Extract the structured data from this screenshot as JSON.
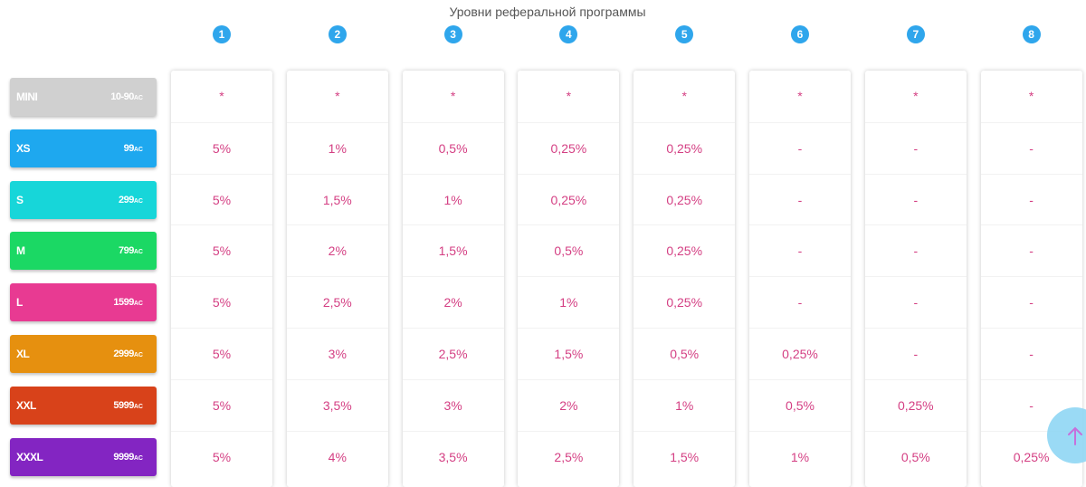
{
  "title": "Уровни реферальной программы",
  "levels": [
    "1",
    "2",
    "3",
    "4",
    "5",
    "6",
    "7",
    "8"
  ],
  "plans": [
    {
      "name": "MINI",
      "price": "10-90",
      "currency": "AC",
      "color": "#d0d0d0"
    },
    {
      "name": "XS",
      "price": "99",
      "currency": "AC",
      "color": "#1ea8ef"
    },
    {
      "name": "S",
      "price": "299",
      "currency": "AC",
      "color": "#17d6d9"
    },
    {
      "name": "M",
      "price": "799",
      "currency": "AC",
      "color": "#1bd864"
    },
    {
      "name": "L",
      "price": "1599",
      "currency": "AC",
      "color": "#e83a92"
    },
    {
      "name": "XL",
      "price": "2999",
      "currency": "AC",
      "color": "#e6900f"
    },
    {
      "name": "XXL",
      "price": "5999",
      "currency": "AC",
      "color": "#d8421a"
    },
    {
      "name": "XXXL",
      "price": "9999",
      "currency": "AC",
      "color": "#8325c2"
    }
  ],
  "grid": [
    [
      "*",
      "*",
      "*",
      "*",
      "*",
      "*",
      "*",
      "*"
    ],
    [
      "5%",
      "1%",
      "0,5%",
      "0,25%",
      "0,25%",
      "-",
      "-",
      "-"
    ],
    [
      "5%",
      "1,5%",
      "1%",
      "0,25%",
      "0,25%",
      "-",
      "-",
      "-"
    ],
    [
      "5%",
      "2%",
      "1,5%",
      "0,5%",
      "0,25%",
      "-",
      "-",
      "-"
    ],
    [
      "5%",
      "2,5%",
      "2%",
      "1%",
      "0,25%",
      "-",
      "-",
      "-"
    ],
    [
      "5%",
      "3%",
      "2,5%",
      "1,5%",
      "0,5%",
      "0,25%",
      "-",
      "-"
    ],
    [
      "5%",
      "3,5%",
      "3%",
      "2%",
      "1%",
      "0,5%",
      "0,25%",
      "-"
    ],
    [
      "5%",
      "4%",
      "3,5%",
      "2,5%",
      "1,5%",
      "1%",
      "0,5%",
      "0,25%"
    ]
  ],
  "scroll_top_icon": "arrow-up-icon",
  "accent_color": "#2fa6ec",
  "value_color": "#d43f83"
}
